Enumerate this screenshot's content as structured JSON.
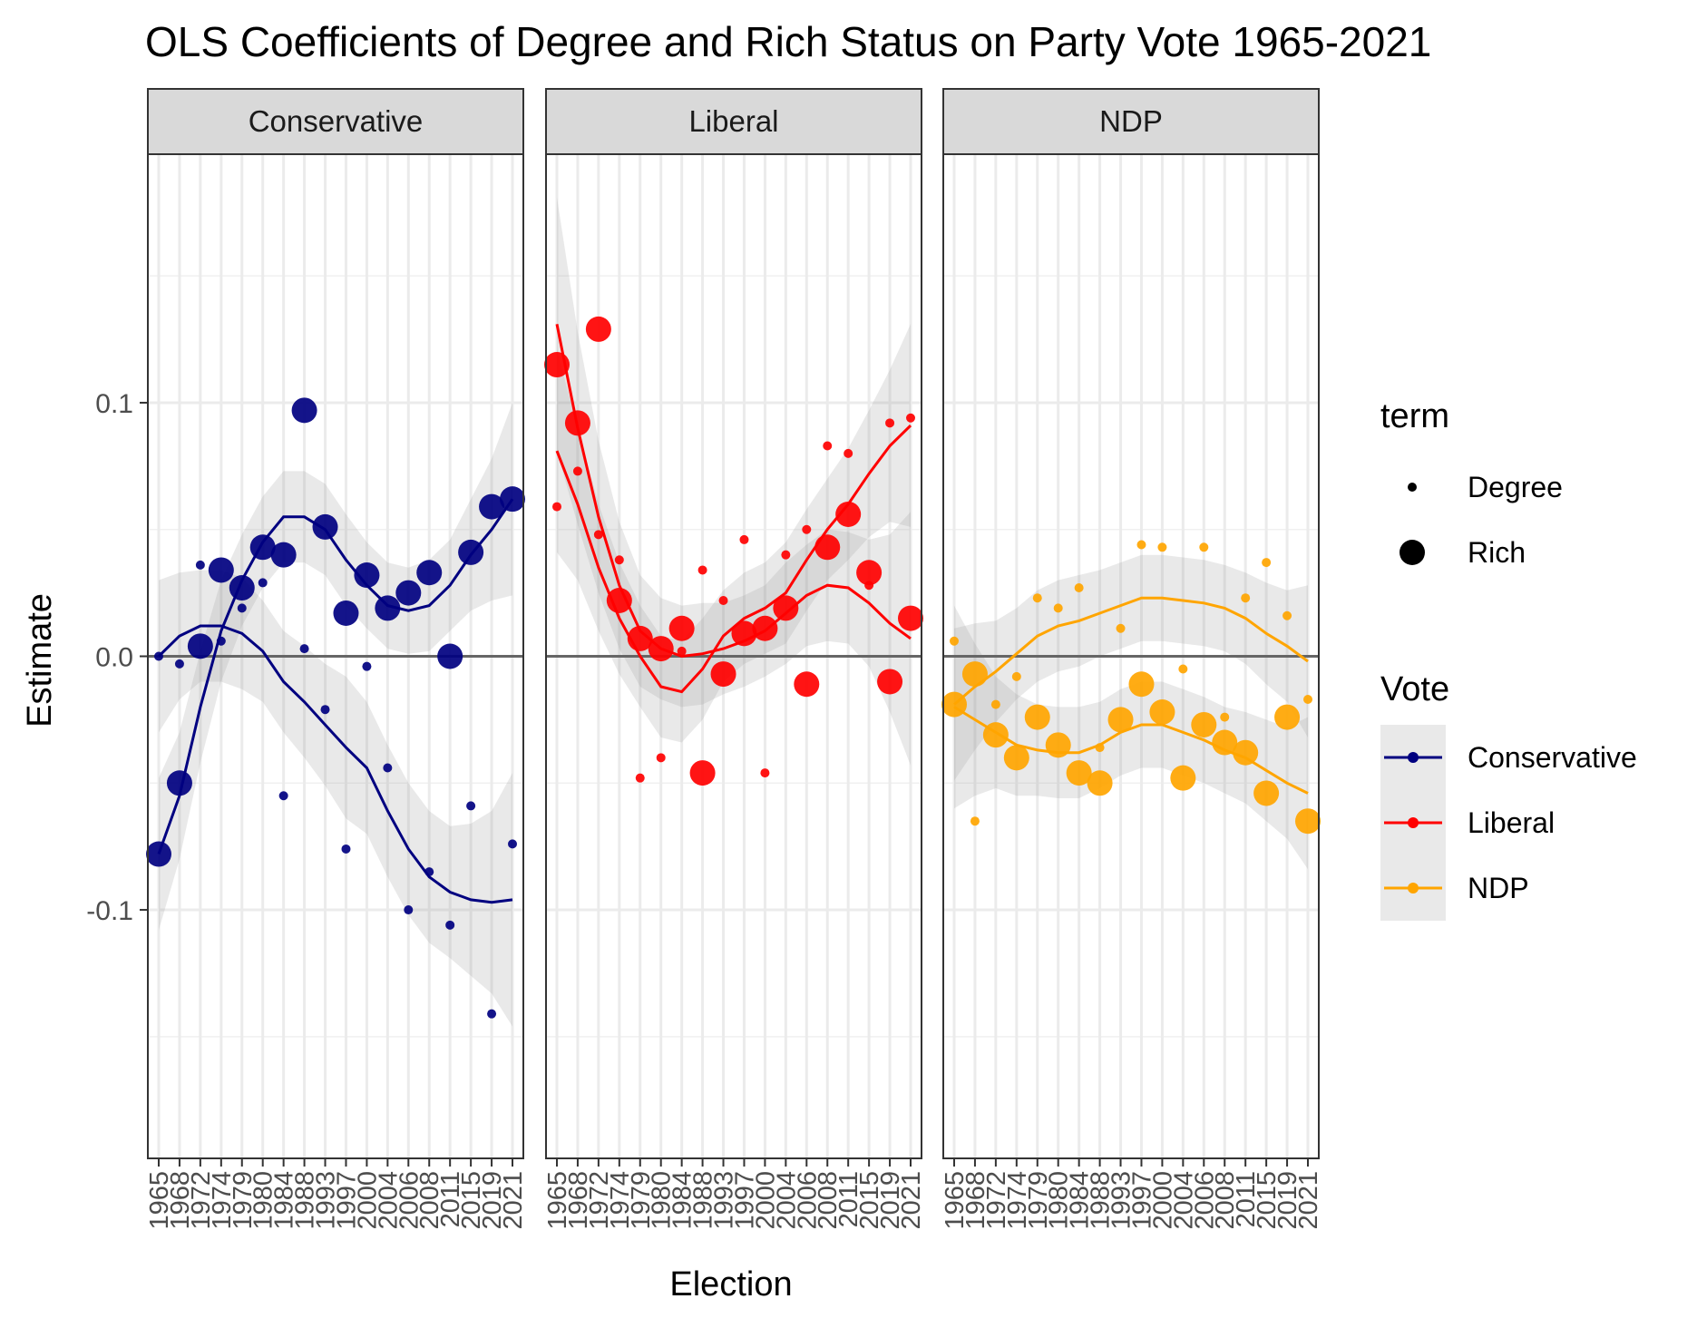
{
  "chart_data": {
    "type": "scatter",
    "title": "OLS Coefficients of Degree and Rich Status on Party Vote 1965-2021",
    "xlabel": "Election",
    "ylabel": "Estimate",
    "ylim": [
      -0.198,
      0.198
    ],
    "y_ticks": [
      {
        "value": -0.1,
        "label": "-0.1"
      },
      {
        "value": 0.0,
        "label": "0.0"
      },
      {
        "value": 0.1,
        "label": "0.1"
      }
    ],
    "categories": [
      "1965",
      "1968",
      "1972",
      "1974",
      "1979",
      "1980",
      "1984",
      "1988",
      "1993",
      "1997",
      "2000",
      "2004",
      "2006",
      "2008",
      "2011",
      "2015",
      "2019",
      "2021"
    ],
    "reference_line": 0,
    "grid": true,
    "legend_position": "right",
    "legend": {
      "term_title": "term",
      "term_items": [
        {
          "label": "Degree",
          "size": "small"
        },
        {
          "label": "Rich",
          "size": "large"
        }
      ],
      "vote_title": "Vote",
      "vote_items": [
        {
          "label": "Conservative",
          "color": "#000080"
        },
        {
          "label": "Liberal",
          "color": "#ff0000"
        },
        {
          "label": "NDP",
          "color": "#ffa500"
        }
      ]
    },
    "panels": [
      {
        "name": "Conservative",
        "color": "#000080",
        "series": [
          {
            "name": "Degree",
            "values": [
              0.0,
              -0.003,
              0.036,
              0.006,
              0.019,
              0.029,
              -0.055,
              0.003,
              -0.021,
              -0.076,
              -0.004,
              -0.044,
              -0.1,
              -0.085,
              -0.106,
              -0.059,
              -0.141,
              -0.074
            ],
            "fit": [
              0.0,
              0.008,
              0.012,
              0.012,
              0.009,
              0.002,
              -0.01,
              -0.018,
              -0.027,
              -0.036,
              -0.044,
              -0.061,
              -0.076,
              -0.087,
              -0.093,
              -0.096,
              -0.097,
              -0.096
            ],
            "band": [
              0.03,
              0.025,
              0.022,
              0.022,
              0.022,
              0.02,
              0.02,
              0.022,
              0.024,
              0.028,
              0.026,
              0.026,
              0.026,
              0.026,
              0.026,
              0.03,
              0.036,
              0.05
            ]
          },
          {
            "name": "Rich",
            "values": [
              -0.078,
              -0.05,
              0.004,
              0.034,
              0.027,
              0.043,
              0.04,
              0.097,
              0.051,
              0.017,
              0.032,
              0.019,
              0.025,
              0.033,
              0.0,
              0.041,
              0.059,
              0.062
            ],
            "fit": [
              -0.078,
              -0.055,
              -0.02,
              0.01,
              0.03,
              0.045,
              0.055,
              0.055,
              0.05,
              0.038,
              0.028,
              0.02,
              0.018,
              0.02,
              0.028,
              0.04,
              0.05,
              0.062
            ],
            "band": [
              0.03,
              0.025,
              0.022,
              0.02,
              0.018,
              0.018,
              0.018,
              0.018,
              0.018,
              0.018,
              0.017,
              0.017,
              0.017,
              0.018,
              0.018,
              0.022,
              0.028,
              0.038
            ]
          }
        ]
      },
      {
        "name": "Liberal",
        "color": "#ff0000",
        "series": [
          {
            "name": "Degree",
            "values": [
              0.059,
              0.073,
              0.048,
              0.038,
              -0.048,
              -0.04,
              0.002,
              0.034,
              0.022,
              0.046,
              -0.046,
              0.04,
              0.05,
              0.083,
              0.08,
              0.028,
              0.092,
              0.094
            ],
            "fit": [
              0.081,
              0.06,
              0.035,
              0.015,
              0.0,
              -0.012,
              -0.014,
              -0.005,
              0.008,
              0.015,
              0.019,
              0.025,
              0.038,
              0.05,
              0.06,
              0.072,
              0.083,
              0.091
            ],
            "band": [
              0.04,
              0.03,
              0.025,
              0.022,
              0.02,
              0.02,
              0.02,
              0.02,
              0.018,
              0.018,
              0.018,
              0.02,
              0.02,
              0.02,
              0.022,
              0.025,
              0.03,
              0.04
            ]
          },
          {
            "name": "Rich",
            "values": [
              0.115,
              0.092,
              0.129,
              0.022,
              0.007,
              0.003,
              0.011,
              -0.046,
              -0.007,
              0.009,
              0.011,
              0.019,
              -0.011,
              0.043,
              0.056,
              0.033,
              -0.01,
              0.015
            ],
            "fit": [
              0.131,
              0.09,
              0.055,
              0.028,
              0.01,
              0.003,
              0.0,
              0.001,
              0.003,
              0.006,
              0.01,
              0.017,
              0.024,
              0.028,
              0.027,
              0.021,
              0.013,
              0.007
            ],
            "band": [
              0.05,
              0.038,
              0.03,
              0.025,
              0.022,
              0.02,
              0.02,
              0.02,
              0.018,
              0.018,
              0.018,
              0.02,
              0.02,
              0.022,
              0.022,
              0.025,
              0.035,
              0.05
            ]
          }
        ]
      },
      {
        "name": "NDP",
        "color": "#ffa500",
        "series": [
          {
            "name": "Degree",
            "values": [
              0.006,
              -0.065,
              -0.019,
              -0.008,
              0.023,
              0.019,
              0.027,
              -0.036,
              0.011,
              0.044,
              0.043,
              -0.005,
              0.043,
              -0.024,
              0.023,
              0.037,
              0.016,
              -0.017
            ],
            "fit": [
              -0.019,
              -0.012,
              -0.006,
              0.001,
              0.008,
              0.012,
              0.014,
              0.017,
              0.02,
              0.023,
              0.023,
              0.022,
              0.021,
              0.019,
              0.015,
              0.009,
              0.004,
              -0.002
            ],
            "band": [
              0.03,
              0.025,
              0.02,
              0.018,
              0.018,
              0.018,
              0.018,
              0.017,
              0.017,
              0.017,
              0.017,
              0.017,
              0.017,
              0.017,
              0.018,
              0.02,
              0.022,
              0.03
            ]
          },
          {
            "name": "Rich",
            "values": [
              -0.019,
              -0.007,
              -0.031,
              -0.04,
              -0.024,
              -0.035,
              -0.046,
              -0.05,
              -0.025,
              -0.011,
              -0.022,
              -0.048,
              -0.027,
              -0.034,
              -0.038,
              -0.054,
              -0.024,
              -0.065
            ],
            "fit": [
              -0.02,
              -0.025,
              -0.03,
              -0.035,
              -0.037,
              -0.038,
              -0.038,
              -0.035,
              -0.03,
              -0.027,
              -0.027,
              -0.03,
              -0.033,
              -0.037,
              -0.04,
              -0.045,
              -0.05,
              -0.054
            ],
            "band": [
              0.04,
              0.03,
              0.022,
              0.02,
              0.018,
              0.018,
              0.018,
              0.017,
              0.017,
              0.017,
              0.017,
              0.017,
              0.017,
              0.017,
              0.018,
              0.02,
              0.022,
              0.03
            ]
          }
        ]
      }
    ]
  }
}
